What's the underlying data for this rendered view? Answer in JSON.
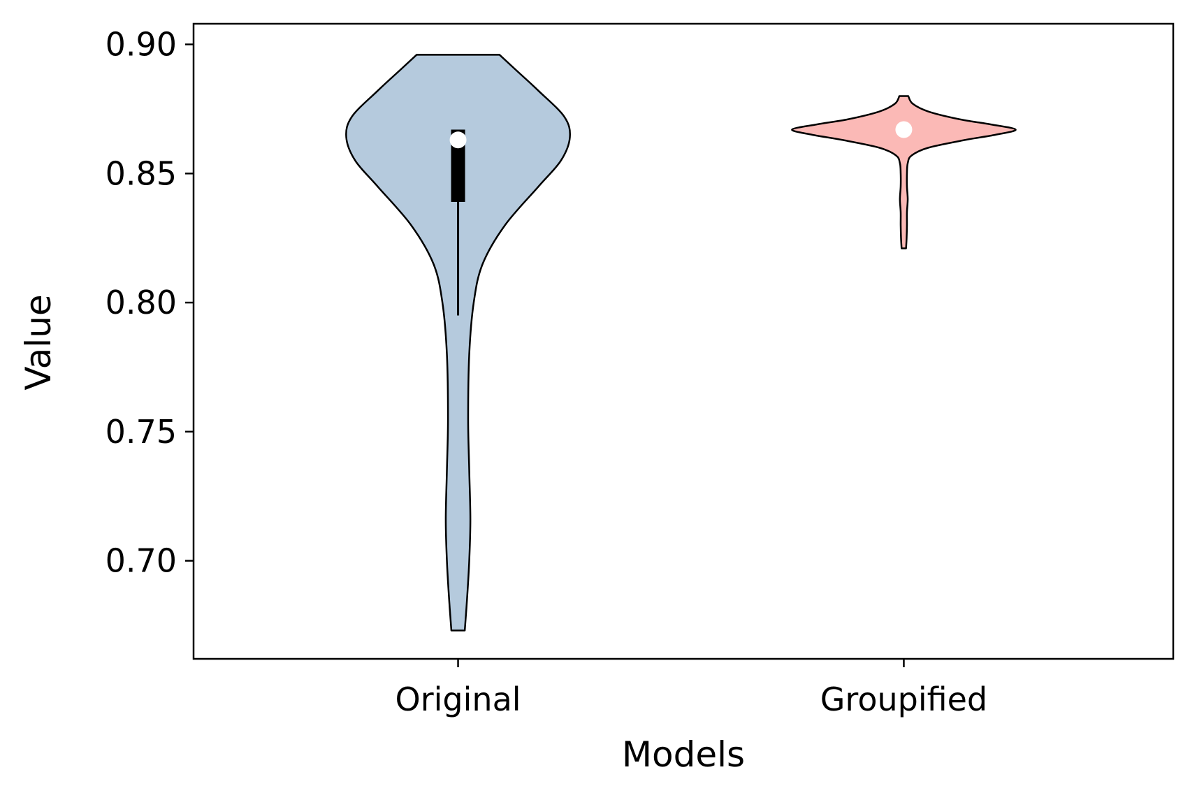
{
  "chart_data": {
    "type": "violin",
    "title": "",
    "xlabel": "Models",
    "ylabel": "Value",
    "ylim": [
      0.662,
      0.908
    ],
    "yticks": [
      0.7,
      0.75,
      0.8,
      0.85,
      0.9
    ],
    "ytick_labels": [
      "0.70",
      "0.75",
      "0.80",
      "0.85",
      "0.90"
    ],
    "categories": [
      "Original",
      "Groupified"
    ],
    "grid": false,
    "legend": "none",
    "series": [
      {
        "category": "Original",
        "color": "#b5cadd",
        "min": 0.673,
        "max": 0.896,
        "q1": 0.839,
        "q3": 0.867,
        "median": 0.863,
        "whisker_low": 0.795,
        "whisker_high": 0.867,
        "density": [
          [
            0.673,
            0.06
          ],
          [
            0.685,
            0.08
          ],
          [
            0.7,
            0.1
          ],
          [
            0.716,
            0.11
          ],
          [
            0.735,
            0.1
          ],
          [
            0.755,
            0.09
          ],
          [
            0.78,
            0.1
          ],
          [
            0.8,
            0.14
          ],
          [
            0.815,
            0.22
          ],
          [
            0.83,
            0.42
          ],
          [
            0.845,
            0.72
          ],
          [
            0.855,
            0.92
          ],
          [
            0.864,
            1.0
          ],
          [
            0.872,
            0.95
          ],
          [
            0.882,
            0.72
          ],
          [
            0.89,
            0.52
          ],
          [
            0.896,
            0.37
          ]
        ]
      },
      {
        "category": "Groupified",
        "color": "#fbb9b6",
        "min": 0.821,
        "max": 0.88,
        "median": 0.867,
        "density": [
          [
            0.821,
            0.02
          ],
          [
            0.825,
            0.025
          ],
          [
            0.83,
            0.028
          ],
          [
            0.835,
            0.028
          ],
          [
            0.84,
            0.035
          ],
          [
            0.845,
            0.028
          ],
          [
            0.85,
            0.028
          ],
          [
            0.854,
            0.035
          ],
          [
            0.857,
            0.07
          ],
          [
            0.86,
            0.22
          ],
          [
            0.863,
            0.55
          ],
          [
            0.865,
            0.82
          ],
          [
            0.867,
            1.0
          ],
          [
            0.869,
            0.78
          ],
          [
            0.871,
            0.5
          ],
          [
            0.874,
            0.22
          ],
          [
            0.877,
            0.08
          ],
          [
            0.88,
            0.04
          ]
        ]
      }
    ]
  }
}
